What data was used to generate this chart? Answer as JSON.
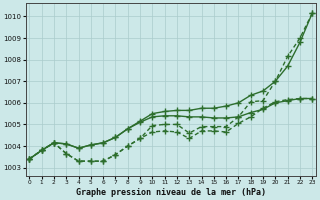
{
  "title": "Graphe pression niveau de la mer (hPa)",
  "hours": [
    0,
    1,
    2,
    3,
    4,
    5,
    6,
    7,
    8,
    9,
    10,
    11,
    12,
    13,
    14,
    15,
    16,
    17,
    18,
    19,
    20,
    21,
    22,
    23
  ],
  "ylim": [
    1002.6,
    1010.6
  ],
  "yticks": [
    1003,
    1004,
    1005,
    1006,
    1007,
    1008,
    1009,
    1010
  ],
  "background_color": "#cce8e8",
  "grid_color": "#aacccc",
  "line_color": "#2d6e2d",
  "series_smooth_upper": [
    1003.4,
    1003.8,
    1004.15,
    1004.1,
    1003.9,
    1004.05,
    1004.15,
    1004.4,
    1004.8,
    1005.15,
    1005.5,
    1005.6,
    1005.65,
    1005.65,
    1005.75,
    1005.75,
    1005.85,
    1006.0,
    1006.35,
    1006.55,
    1007.0,
    1007.7,
    1008.8,
    1010.15
  ],
  "series_smooth_lower": [
    1003.4,
    1003.8,
    1004.15,
    1004.1,
    1003.9,
    1004.05,
    1004.15,
    1004.4,
    1004.8,
    1005.1,
    1005.35,
    1005.4,
    1005.4,
    1005.35,
    1005.35,
    1005.3,
    1005.3,
    1005.35,
    1005.55,
    1005.7,
    1006.0,
    1006.1,
    1006.2,
    1006.2
  ],
  "series_dotted_upper": [
    1003.4,
    1003.8,
    1004.15,
    1003.65,
    1003.3,
    1003.3,
    1003.3,
    1003.6,
    1004.0,
    1004.35,
    1004.95,
    1005.0,
    1005.0,
    1004.6,
    1004.9,
    1004.9,
    1004.9,
    1005.35,
    1006.05,
    1006.1,
    1007.0,
    1008.15,
    1009.0,
    1010.15
  ],
  "series_dotted_lower": [
    1003.4,
    1003.8,
    1004.15,
    1003.65,
    1003.3,
    1003.3,
    1003.3,
    1003.6,
    1004.0,
    1004.35,
    1004.65,
    1004.7,
    1004.65,
    1004.35,
    1004.7,
    1004.7,
    1004.65,
    1005.05,
    1005.35,
    1005.75,
    1006.05,
    1006.15,
    1006.2,
    1006.2
  ],
  "marker_size": 2.5,
  "line_width": 1.0
}
